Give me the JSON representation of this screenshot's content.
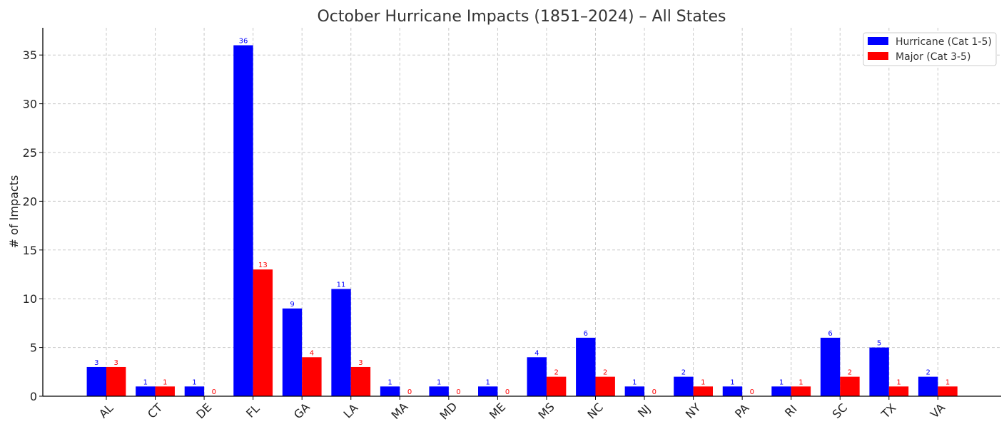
{
  "chart_data": {
    "type": "bar",
    "title": "October Hurricane Impacts (1851–2024) – All States",
    "xlabel": "",
    "ylabel": "# of Impacts",
    "ylim": [
      0,
      38
    ],
    "yticks": [
      0,
      5,
      10,
      15,
      20,
      25,
      30,
      35
    ],
    "grid": true,
    "legend_position": "top-right",
    "categories": [
      "AL",
      "CT",
      "DE",
      "FL",
      "GA",
      "LA",
      "MA",
      "MD",
      "ME",
      "MS",
      "NC",
      "NJ",
      "NY",
      "PA",
      "RI",
      "SC",
      "TX",
      "VA"
    ],
    "series": [
      {
        "name": "Hurricane (Cat 1-5)",
        "color": "#0000ff",
        "values": [
          3,
          1,
          1,
          36,
          9,
          11,
          1,
          1,
          1,
          4,
          6,
          1,
          2,
          1,
          1,
          6,
          5,
          2
        ]
      },
      {
        "name": "Major (Cat 3-5)",
        "color": "#ff0000",
        "values": [
          3,
          1,
          0,
          13,
          4,
          3,
          0,
          0,
          0,
          2,
          2,
          0,
          1,
          0,
          1,
          2,
          1,
          1
        ]
      }
    ]
  }
}
